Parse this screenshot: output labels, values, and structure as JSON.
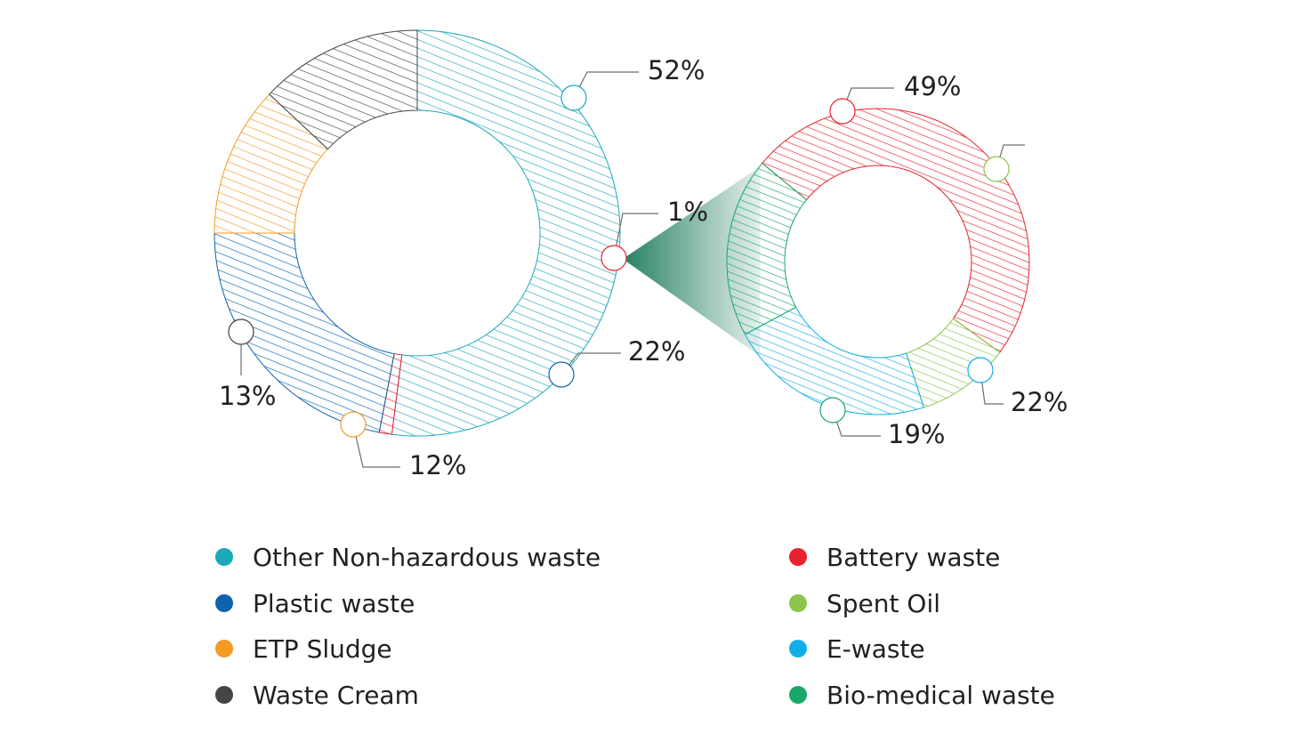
{
  "chart_data": [
    {
      "type": "donut",
      "title": "",
      "slices": [
        {
          "label": "Other Non-hazardous waste",
          "value": 52,
          "display": "52%",
          "color": "#1aa9b8"
        },
        {
          "label": "Battery waste",
          "value": 1,
          "display": "1%",
          "color": "#e8222e"
        },
        {
          "label": "Plastic waste",
          "value": 22,
          "display": "22%",
          "color": "#0e62ae"
        },
        {
          "label": "ETP Sludge",
          "value": 12,
          "display": "12%",
          "color": "#f29a22"
        },
        {
          "label": "Waste Cream",
          "value": 13,
          "display": "13%",
          "color": "#434548"
        }
      ]
    },
    {
      "type": "donut",
      "title": "",
      "breakdown_of": "Battery waste",
      "slices": [
        {
          "label": "Battery waste",
          "value": 49,
          "display": "49%",
          "color": "#e8222e"
        },
        {
          "label": "Spent Oil",
          "value": 10,
          "display": "",
          "color": "#8dc44a"
        },
        {
          "label": "E-waste",
          "value": 22,
          "display": "22%",
          "color": "#11aee8"
        },
        {
          "label": "Bio-medical waste",
          "value": 19,
          "display": "19%",
          "color": "#1aa86a"
        }
      ]
    }
  ],
  "legend": {
    "left": [
      {
        "label": "Other Non-hazardous waste",
        "color": "#1aa9b8"
      },
      {
        "label": "Plastic waste",
        "color": "#0e62ae"
      },
      {
        "label": "ETP Sludge",
        "color": "#f29a22"
      },
      {
        "label": "Waste Cream",
        "color": "#434548"
      }
    ],
    "right": [
      {
        "label": "Battery waste",
        "color": "#e8222e"
      },
      {
        "label": "Spent Oil",
        "color": "#8dc44a"
      },
      {
        "label": "E-waste",
        "color": "#11aee8"
      },
      {
        "label": "Bio-medical waste",
        "color": "#1aa86a"
      }
    ]
  }
}
